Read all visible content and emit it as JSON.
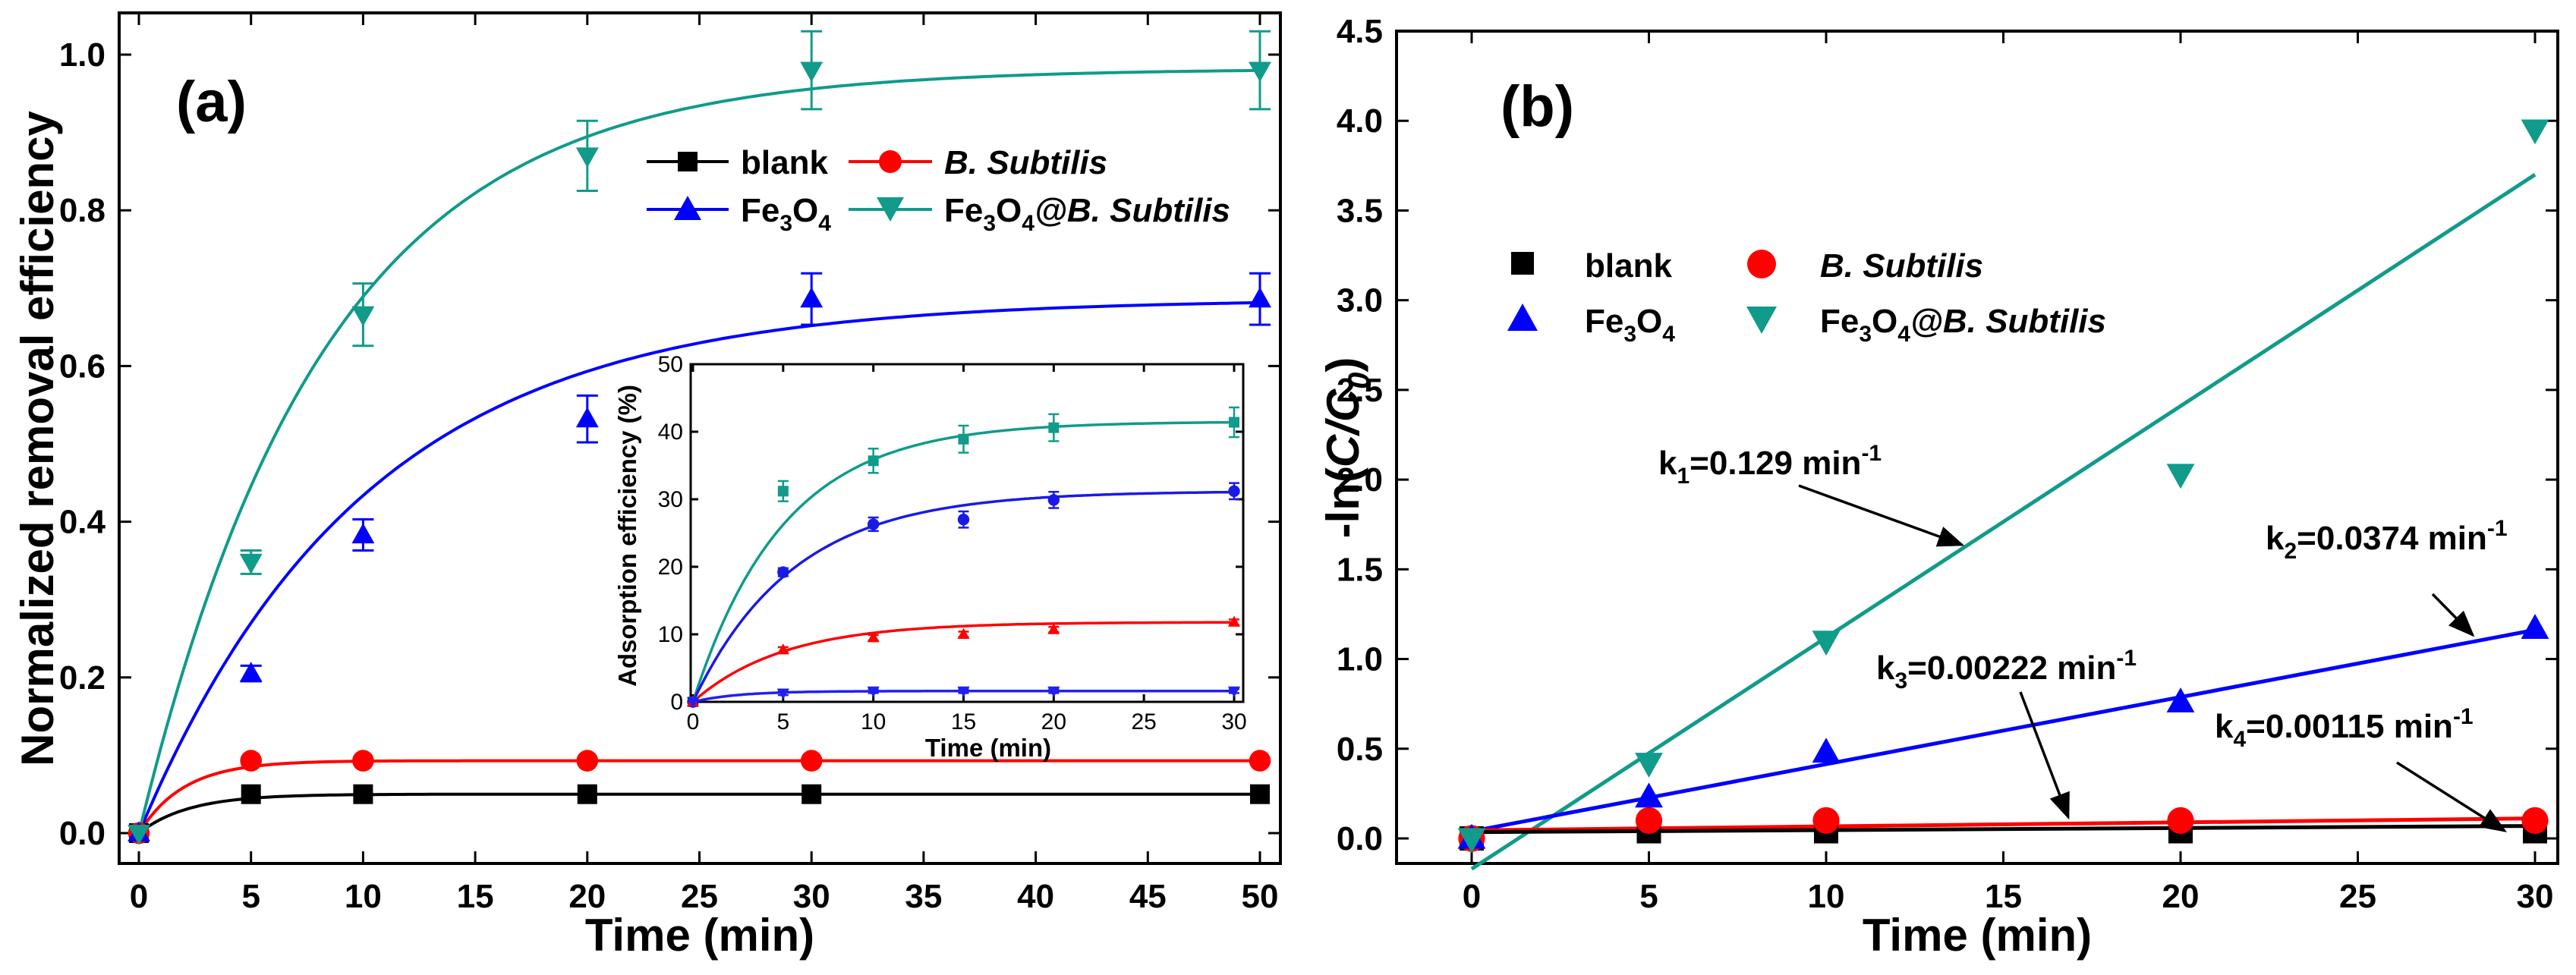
{
  "chart_data": [
    {
      "type": "line",
      "panel_label": "(a)",
      "xlabel": "Time (min)",
      "ylabel": "Normalized removal efficiency",
      "xlim": [
        -1,
        51
      ],
      "ylim": [
        -0.05,
        1.05
      ],
      "xticks": [
        "0",
        "5",
        "10",
        "15",
        "20",
        "25",
        "30",
        "35",
        "40",
        "45",
        "50"
      ],
      "yticks": [
        "0.0",
        "0.2",
        "0.4",
        "0.6",
        "0.8",
        "1.0"
      ],
      "legend_position": "top-right",
      "series": [
        {
          "name": "blank",
          "label": "blank",
          "color": "#000000",
          "marker": "square",
          "x": [
            0,
            5,
            10,
            20,
            30,
            50
          ],
          "y": [
            0,
            0.05,
            0.05,
            0.05,
            0.05,
            0.05
          ],
          "fit": {
            "a": 0.05,
            "k": 0.45
          }
        },
        {
          "name": "B. Subtilis",
          "label": "B. Subtilis",
          "color": "#ff0000",
          "marker": "circle",
          "x": [
            0,
            5,
            10,
            20,
            30,
            50
          ],
          "y": [
            0,
            0.093,
            0.093,
            0.093,
            0.093,
            0.093
          ],
          "fit": {
            "a": 0.093,
            "k": 0.5
          }
        },
        {
          "name": "Fe3O4",
          "label_main": "Fe",
          "label_sub1": "3",
          "label_mid": "O",
          "label_sub2": "4",
          "color": "#0000ff",
          "marker": "triangle-up",
          "x": [
            0,
            5,
            10,
            20,
            30,
            50
          ],
          "y": [
            0,
            0.205,
            0.383,
            0.532,
            0.686,
            0.686
          ],
          "err": [
            0,
            0.01,
            0.02,
            0.03,
            0.033,
            0.033
          ],
          "fit": {
            "a": 0.686,
            "k": 0.1
          }
        },
        {
          "name": "Fe3O4@B. Subtilis",
          "label_main": "Fe",
          "label_sub1": "3",
          "label_mid": "O",
          "label_sub2": "4",
          "label_tail": "@B. Subtilis",
          "color": "#109b8a",
          "marker": "triangle-down",
          "x": [
            0,
            5,
            10,
            20,
            30,
            50
          ],
          "y": [
            0,
            0.348,
            0.666,
            0.87,
            0.98,
            0.98
          ],
          "err": [
            0,
            0.015,
            0.04,
            0.045,
            0.05,
            0.05
          ],
          "fit": {
            "a": 0.982,
            "k": 0.121
          }
        }
      ],
      "inset": {
        "xlabel": "Time (min)",
        "ylabel": "Adsorption efficiency (%)",
        "xlim": [
          -0.5,
          30.5
        ],
        "ylim": [
          0,
          50
        ],
        "xticks": [
          "0",
          "5",
          "10",
          "15",
          "20",
          "25",
          "30"
        ],
        "yticks": [
          "0",
          "10",
          "20",
          "30",
          "40",
          "50"
        ],
        "series": [
          {
            "color": "#109b8a",
            "marker": "square",
            "x": [
              0,
              5,
              10,
              15,
              20,
              30
            ],
            "y": [
              0,
              31.2,
              35.7,
              38.9,
              40.6,
              41.4
            ],
            "err": [
              0,
              1.5,
              1.8,
              2,
              2,
              2.2
            ],
            "fit": {
              "a": 41.5,
              "k": 0.2
            }
          },
          {
            "color": "#1a1ae6",
            "marker": "circle",
            "x": [
              0,
              5,
              10,
              15,
              20,
              30
            ],
            "y": [
              0,
              19.2,
              26.3,
              27.0,
              29.9,
              31.2
            ],
            "err": [
              0,
              0.6,
              1,
              1.2,
              1.2,
              1.2
            ],
            "fit": {
              "a": 31.2,
              "k": 0.18
            }
          },
          {
            "color": "#ff0000",
            "marker": "triangle-up",
            "x": [
              0,
              5,
              10,
              15,
              20,
              30
            ],
            "y": [
              0,
              7.7,
              9.5,
              10.0,
              10.7,
              11.8
            ],
            "err": [
              0,
              0.4,
              0.4,
              0.4,
              0.4,
              0.4
            ],
            "fit": {
              "a": 11.8,
              "k": 0.2
            }
          },
          {
            "color": "#2020f0",
            "marker": "triangle-down",
            "x": [
              0,
              5,
              10,
              15,
              20,
              30
            ],
            "y": [
              0,
              1.3,
              1.6,
              1.6,
              1.6,
              1.6
            ],
            "err": [
              0,
              0.3,
              0.3,
              0.3,
              0.3,
              0.3
            ],
            "fit": {
              "a": 1.6,
              "k": 0.4
            }
          }
        ]
      }
    },
    {
      "type": "scatter",
      "panel_label": "(b)",
      "xlabel": "Time (min)",
      "ylabel_prefix": "-ln(",
      "ylabel_italic": "C/C",
      "ylabel_sub": "0",
      "ylabel_suffix": ")",
      "xlim": [
        -1,
        31
      ],
      "ylim": [
        -0.25,
        4.5
      ],
      "xticks": [
        "0",
        "5",
        "10",
        "15",
        "20",
        "25",
        "30"
      ],
      "yticks": [
        "0.0",
        "0.5",
        "1.0",
        "1.5",
        "2.0",
        "2.5",
        "3.0",
        "3.5",
        "4.0",
        "4.5"
      ],
      "legend_position": "upper-left",
      "series": [
        {
          "name": "blank",
          "color": "#000000",
          "marker": "square",
          "x": [
            0,
            5,
            10,
            20,
            30
          ],
          "y": [
            0,
            0.04,
            0.04,
            0.04,
            0.04
          ],
          "line": [
            0.035,
            0.00115
          ]
        },
        {
          "name": "B. Subtilis",
          "color": "#ff0000",
          "marker": "circle",
          "x": [
            0,
            5,
            10,
            20,
            30
          ],
          "y": [
            0,
            0.1,
            0.1,
            0.1,
            0.1
          ],
          "line": [
            0.045,
            0.00222
          ]
        },
        {
          "name": "Fe3O4",
          "color": "#0000ff",
          "marker": "triangle-up",
          "x": [
            0,
            5,
            10,
            20,
            30
          ],
          "y": [
            0,
            0.23,
            0.48,
            0.76,
            1.17
          ],
          "line": [
            0.04,
            0.0374
          ]
        },
        {
          "name": "Fe3O4@B. Subtilis",
          "color": "#109b8a",
          "marker": "triangle-down",
          "x": [
            0,
            5,
            10,
            20,
            30
          ],
          "y": [
            0,
            0.42,
            1.1,
            2.03,
            3.95
          ],
          "line": [
            -0.17,
            0.129
          ]
        }
      ],
      "annotations": [
        {
          "name": "k1",
          "base": "k",
          "sub": "1",
          "rest": "=0.129 min",
          "sup": "-1"
        },
        {
          "name": "k2",
          "base": "k",
          "sub": "2",
          "rest": "=0.0374 min",
          "sup": "-1"
        },
        {
          "name": "k3",
          "base": "k",
          "sub": "3",
          "rest": "=0.00222 min",
          "sup": "-1"
        },
        {
          "name": "k4",
          "base": "k",
          "sub": "4",
          "rest": "=0.00115 min",
          "sup": "-1"
        }
      ]
    }
  ]
}
